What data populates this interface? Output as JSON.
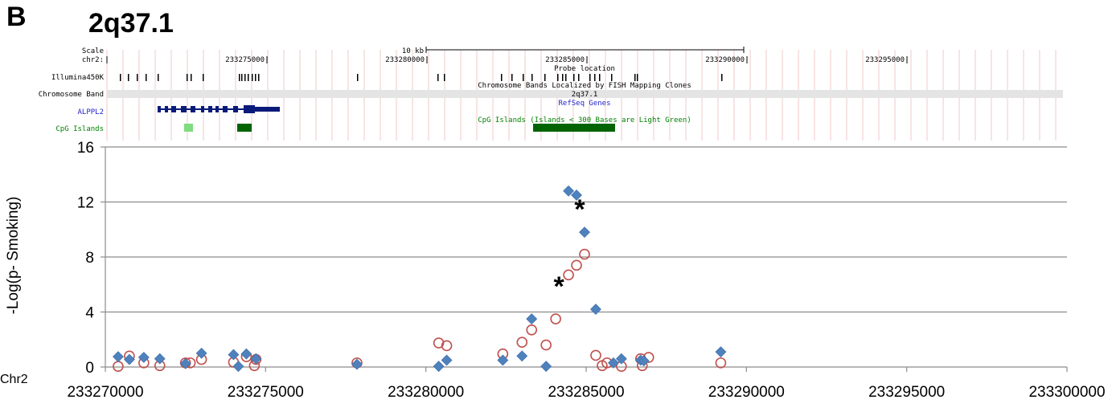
{
  "panel_label": "B",
  "region_title": "2q37.1",
  "chr_axis_label": "Chr2",
  "browser": {
    "row_labels": {
      "scale": "Scale",
      "chrom": "chr2:",
      "probes": "Illumina450K",
      "bands": "Chromosome Band",
      "genes": "ALPPL2",
      "cpg": "CpG Islands"
    },
    "scale_bar_label": "10 kb",
    "positions": [
      "233275000",
      "233280000",
      "233285000",
      "233290000",
      "233295000"
    ],
    "probe_track_title": "Probe location",
    "band_track_title": "Chromosome Bands Localized by FISH Mapping Clones",
    "band_name": "2q37.1",
    "gene_track_title": "RefSeq Genes",
    "cpg_track_title": "CpG Islands (Islands < 300 Bases are Light Green)",
    "colors": {
      "gene": "#0a1a7a",
      "cpg_dark": "#006400",
      "cpg_light": "#7fdc7f",
      "band": "#e4e4e4",
      "grid_line": "#f2c8c8",
      "label_blue": "#2222cc",
      "label_green": "#008000"
    }
  },
  "chart_data": {
    "type": "scatter",
    "title": "",
    "xlabel": "",
    "ylabel": "-Log(p- Smoking)",
    "xlim": [
      233270000,
      233300000
    ],
    "ylim": [
      0,
      16
    ],
    "xticks": [
      "233270000",
      "233275000",
      "233280000",
      "233285000",
      "233290000",
      "233295000",
      "233300000"
    ],
    "yticks": [
      "0",
      "4",
      "8",
      "12",
      "16"
    ],
    "grid": true,
    "series": [
      {
        "marker": "diamond",
        "color": "#4f81bd",
        "points": [
          [
            233270400,
            0.75
          ],
          [
            233270750,
            0.55
          ],
          [
            233271200,
            0.7
          ],
          [
            233271700,
            0.6
          ],
          [
            233272500,
            0.25
          ],
          [
            233273000,
            1.0
          ],
          [
            233274000,
            0.9
          ],
          [
            233274150,
            0.05
          ],
          [
            233274400,
            0.95
          ],
          [
            233274700,
            0.6
          ],
          [
            233277850,
            0.2
          ],
          [
            233280400,
            0.05
          ],
          [
            233280650,
            0.5
          ],
          [
            233282400,
            0.5
          ],
          [
            233283000,
            0.8
          ],
          [
            233283300,
            3.5
          ],
          [
            233283750,
            0.05
          ],
          [
            233284450,
            12.8
          ],
          [
            233284700,
            12.5
          ],
          [
            233284950,
            9.8
          ],
          [
            233285300,
            4.2
          ],
          [
            233285850,
            0.3
          ],
          [
            233286100,
            0.6
          ],
          [
            233286700,
            0.5
          ],
          [
            233286800,
            0.45
          ],
          [
            233289200,
            1.1
          ]
        ]
      },
      {
        "marker": "open-circle",
        "color": "#c0504d",
        "points": [
          [
            233270400,
            0.05
          ],
          [
            233270750,
            0.8
          ],
          [
            233271200,
            0.3
          ],
          [
            233271700,
            0.1
          ],
          [
            233272500,
            0.3
          ],
          [
            233272650,
            0.3
          ],
          [
            233273000,
            0.55
          ],
          [
            233274000,
            0.35
          ],
          [
            233274400,
            0.75
          ],
          [
            233274650,
            0.1
          ],
          [
            233274700,
            0.55
          ],
          [
            233277850,
            0.3
          ],
          [
            233280400,
            1.75
          ],
          [
            233280650,
            1.55
          ],
          [
            233282400,
            0.95
          ],
          [
            233283000,
            1.8
          ],
          [
            233283300,
            2.7
          ],
          [
            233283750,
            1.6
          ],
          [
            233284050,
            3.5
          ],
          [
            233284450,
            6.7
          ],
          [
            233284700,
            7.4
          ],
          [
            233284950,
            8.2
          ],
          [
            233285300,
            0.85
          ],
          [
            233285500,
            0.1
          ],
          [
            233285650,
            0.3
          ],
          [
            233286100,
            0.05
          ],
          [
            233286700,
            0.6
          ],
          [
            233286750,
            0.1
          ],
          [
            233286950,
            0.7
          ],
          [
            233289200,
            0.3
          ]
        ]
      }
    ],
    "annotations": [
      {
        "text": "*",
        "x": 233284800,
        "y": 11.8
      },
      {
        "text": "*",
        "x": 233284150,
        "y": 6.2
      }
    ]
  }
}
